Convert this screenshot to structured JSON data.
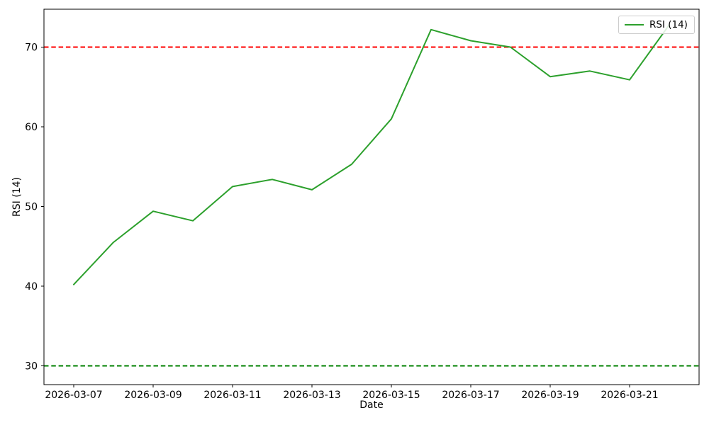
{
  "chart_data": {
    "type": "line",
    "title": "",
    "xlabel": "Date",
    "ylabel": "RSI (14)",
    "x": [
      "2026-03-07",
      "2026-03-08",
      "2026-03-09",
      "2026-03-10",
      "2026-03-11",
      "2026-03-12",
      "2026-03-13",
      "2026-03-14",
      "2026-03-15",
      "2026-03-16",
      "2026-03-17",
      "2026-03-18",
      "2026-03-19",
      "2026-03-20",
      "2026-03-21",
      "2026-03-22"
    ],
    "series": [
      {
        "name": "RSI (14)",
        "color": "#2ca02c",
        "values": [
          40.2,
          45.5,
          49.4,
          48.2,
          52.5,
          53.4,
          52.1,
          55.3,
          61.0,
          72.2,
          70.8,
          70.0,
          66.3,
          67.0,
          65.9,
          72.8
        ]
      }
    ],
    "reference_lines": [
      {
        "name": "overbought-line",
        "value": 70,
        "color": "#ff0000",
        "linestyle": "dashed"
      },
      {
        "name": "oversold-line",
        "value": 30,
        "color": "#008000",
        "linestyle": "dashed"
      }
    ],
    "ylim": [
      27.64,
      74.76
    ],
    "yticks": [
      30,
      40,
      50,
      60,
      70
    ],
    "xticks": {
      "indices": [
        0,
        2,
        4,
        6,
        8,
        10,
        12,
        14
      ],
      "labels": [
        "2026-03-07",
        "2026-03-09",
        "2026-03-11",
        "2026-03-13",
        "2026-03-15",
        "2026-03-17",
        "2026-03-19",
        "2026-03-21"
      ]
    },
    "legend": {
      "position": "upper-right",
      "entries": [
        {
          "label": "RSI (14)",
          "color": "#2ca02c"
        }
      ]
    },
    "grid": false,
    "background": "#ffffff"
  }
}
